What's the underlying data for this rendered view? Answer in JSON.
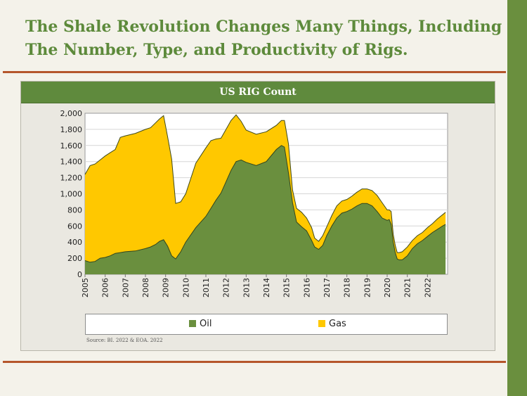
{
  "page": {
    "title": "The Shale Revolution Changes Many Things, Including The Number, Type, and Productivity of Rigs.",
    "source": "Source: BI. 2022 & EOA. 2022"
  },
  "colors": {
    "accent_green": "#5f8a3d",
    "rule_orange": "#b5562b",
    "oil": "#6a8f3e",
    "gas": "#ffc800"
  },
  "chart_data": {
    "type": "area",
    "stacked": true,
    "title": "US RIG Count",
    "xlabel": "",
    "ylabel": "",
    "ylim": [
      0,
      2000
    ],
    "xlim": [
      2005,
      2023
    ],
    "grid": true,
    "legend_position": "bottom",
    "y_ticks": [
      "0",
      "200",
      "400",
      "600",
      "800",
      "1,000",
      "1,200",
      "1,400",
      "1,600",
      "1,800",
      "2,000"
    ],
    "x_ticks": [
      "2005",
      "2006",
      "2007",
      "2008",
      "2009",
      "2010",
      "2011",
      "2012",
      "2013",
      "2014",
      "2015",
      "2016",
      "2017",
      "2018",
      "2019",
      "2020",
      "2021",
      "2022"
    ],
    "x": [
      2005.0,
      2005.25,
      2005.5,
      2005.75,
      2006.0,
      2006.25,
      2006.5,
      2006.75,
      2007.0,
      2007.5,
      2008.0,
      2008.25,
      2008.5,
      2008.7,
      2008.9,
      2009.1,
      2009.3,
      2009.5,
      2009.75,
      2010.0,
      2010.5,
      2011.0,
      2011.25,
      2011.5,
      2011.75,
      2012.0,
      2012.25,
      2012.5,
      2012.75,
      2013.0,
      2013.5,
      2014.0,
      2014.5,
      2014.75,
      2014.9,
      2015.1,
      2015.3,
      2015.5,
      2015.75,
      2016.0,
      2016.25,
      2016.4,
      2016.6,
      2016.8,
      2017.0,
      2017.25,
      2017.5,
      2017.75,
      2018.0,
      2018.25,
      2018.5,
      2018.75,
      2019.0,
      2019.25,
      2019.5,
      2019.75,
      2020.0,
      2020.1,
      2020.2,
      2020.3,
      2020.4,
      2020.5,
      2020.6,
      2020.75,
      2021.0,
      2021.25,
      2021.5,
      2021.75,
      2022.0,
      2022.25,
      2022.5,
      2022.75,
      2022.9
    ],
    "series": [
      {
        "name": "Oil",
        "values": [
          170,
          150,
          160,
          200,
          210,
          230,
          260,
          270,
          280,
          290,
          320,
          340,
          370,
          410,
          430,
          350,
          230,
          190,
          280,
          400,
          580,
          720,
          820,
          920,
          1010,
          1150,
          1290,
          1400,
          1420,
          1390,
          1350,
          1400,
          1550,
          1600,
          1580,
          1260,
          890,
          650,
          590,
          540,
          420,
          340,
          310,
          360,
          480,
          600,
          700,
          760,
          780,
          810,
          850,
          880,
          880,
          850,
          780,
          700,
          670,
          680,
          620,
          400,
          270,
          190,
          180,
          180,
          230,
          320,
          380,
          420,
          470,
          520,
          560,
          600,
          620
        ]
      },
      {
        "name": "Gas",
        "values": [
          1070,
          1200,
          1210,
          1220,
          1260,
          1280,
          1290,
          1430,
          1440,
          1460,
          1480,
          1480,
          1510,
          1520,
          1540,
          1360,
          1200,
          690,
          620,
          600,
          800,
          850,
          840,
          760,
          680,
          650,
          620,
          580,
          480,
          400,
          390,
          370,
          300,
          310,
          330,
          360,
          160,
          170,
          180,
          160,
          160,
          110,
          100,
          120,
          110,
          130,
          150,
          150,
          150,
          160,
          170,
          180,
          180,
          190,
          200,
          190,
          130,
          120,
          160,
          100,
          90,
          80,
          90,
          100,
          110,
          100,
          100,
          100,
          110,
          110,
          130,
          140,
          150
        ]
      }
    ],
    "legend": [
      "Oil",
      "Gas"
    ]
  }
}
